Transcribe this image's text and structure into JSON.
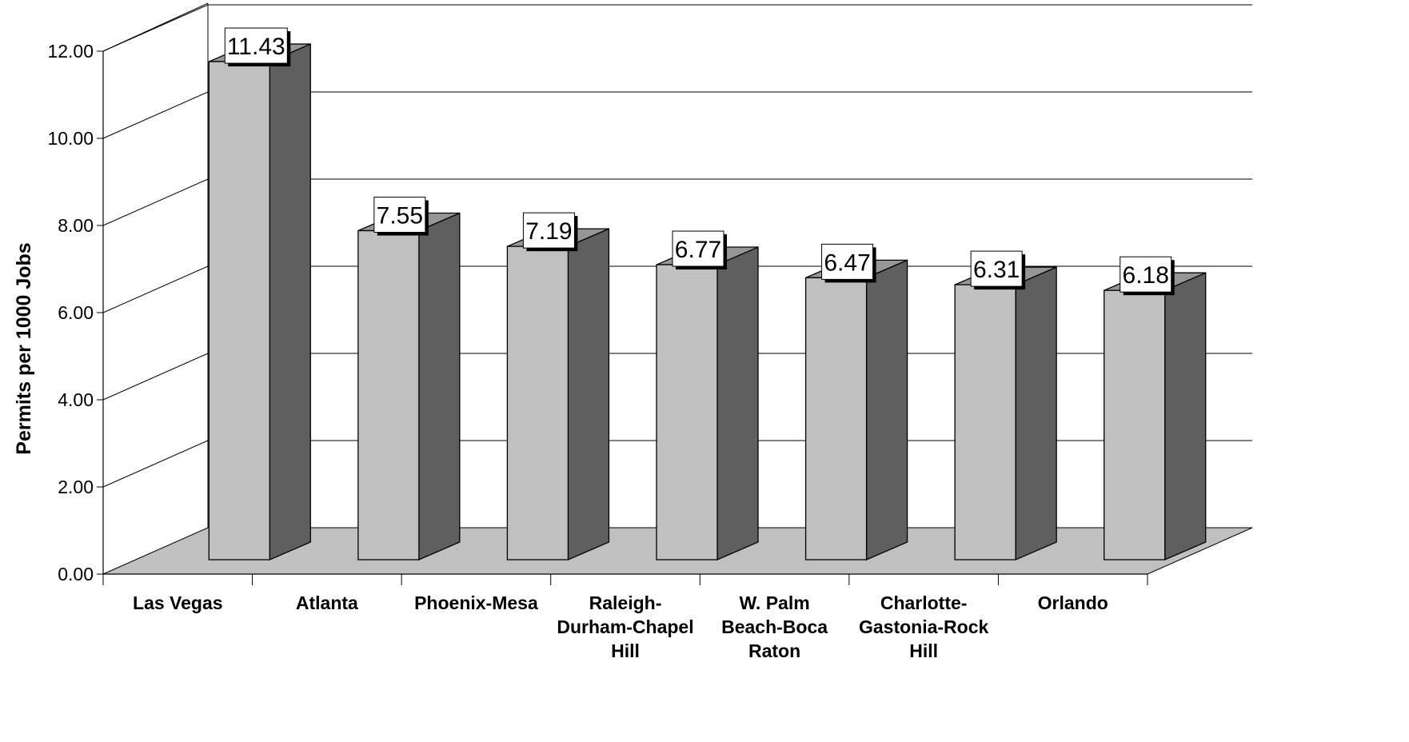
{
  "chart_data": {
    "type": "bar",
    "three_d": true,
    "title": "",
    "xlabel": "",
    "ylabel": "Permits per 1000 Jobs",
    "ylim": [
      0,
      12
    ],
    "yticks": [
      "0.00",
      "2.00",
      "4.00",
      "6.00",
      "8.00",
      "10.00",
      "12.00"
    ],
    "categories": [
      "Las Vegas",
      "Atlanta",
      "Phoenix-Mesa",
      "Raleigh-Durham-Chapel Hill",
      "W. Palm Beach-Boca Raton",
      "Charlotte-Gastonia-Rock Hill",
      "Orlando"
    ],
    "category_label_lines": [
      [
        "Las Vegas"
      ],
      [
        "Atlanta"
      ],
      [
        "Phoenix-Mesa"
      ],
      [
        "Raleigh-",
        "Durham-Chapel",
        "Hill"
      ],
      [
        "W. Palm",
        "Beach-Boca",
        "Raton"
      ],
      [
        "Charlotte-",
        "Gastonia-Rock",
        "Hill"
      ],
      [
        "Orlando"
      ]
    ],
    "values": [
      11.43,
      7.55,
      7.19,
      6.77,
      6.47,
      6.31,
      6.18
    ],
    "data_labels": [
      "11.43",
      "7.55",
      "7.19",
      "6.77",
      "6.47",
      "6.31",
      "6.18"
    ],
    "grid": true,
    "legend": "none",
    "colors": {
      "bar_front": "#c0c0c0",
      "bar_side": "#5f5f5f",
      "bar_top": "#969696",
      "floor": "#c0c0c0",
      "grid": "#000000"
    }
  }
}
